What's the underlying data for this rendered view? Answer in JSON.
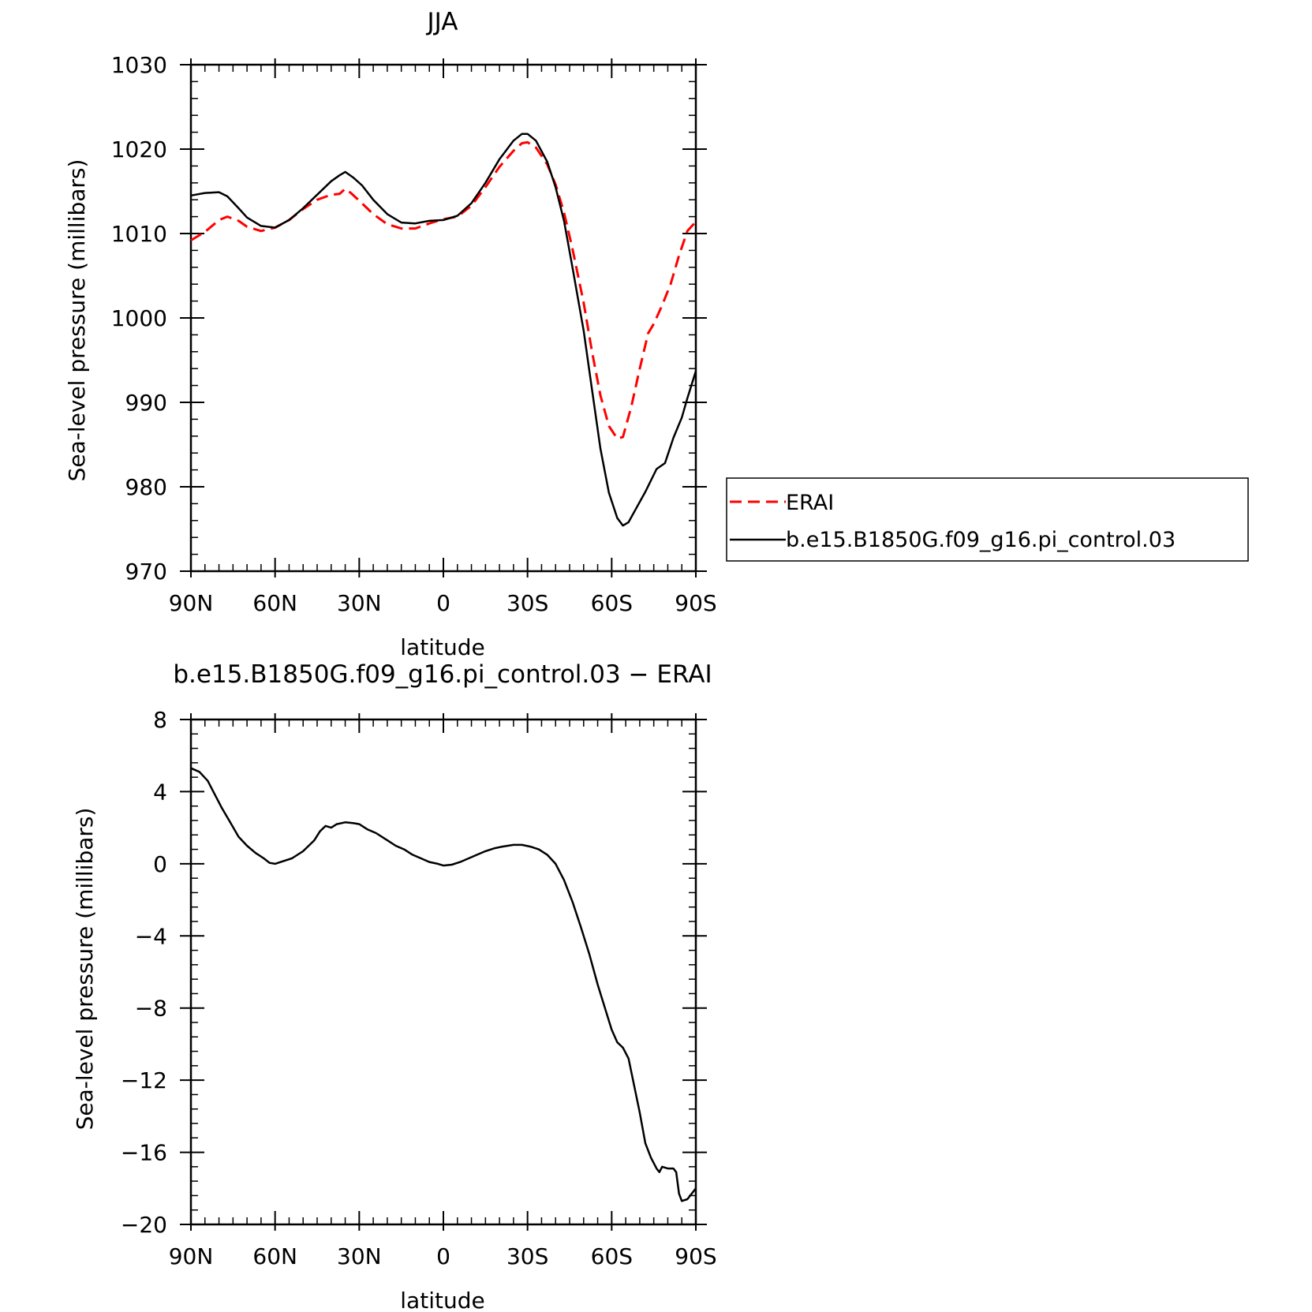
{
  "chart_data": [
    {
      "type": "line",
      "title": "JJA",
      "xlabel": "latitude",
      "ylabel": "Sea-level pressure (millibars)",
      "xlim": [
        90,
        -90
      ],
      "ylim": [
        970,
        1030
      ],
      "x_tick_values": [
        90,
        60,
        30,
        0,
        -30,
        -60,
        -90
      ],
      "x_tick_labels": [
        "90N",
        "60N",
        "30N",
        "0",
        "30S",
        "60S",
        "90S"
      ],
      "y_tick_values": [
        970,
        980,
        990,
        1000,
        1010,
        1020,
        1030
      ],
      "y_tick_labels": [
        "970",
        "980",
        "990",
        "1000",
        "1010",
        "1020",
        "1030"
      ],
      "legend": "right",
      "series": [
        {
          "name": "ERAI",
          "color": "#ff0000",
          "dash": "dashed",
          "points": [
            [
              90,
              1009.2
            ],
            [
              85,
              1010.2
            ],
            [
              80,
              1011.6
            ],
            [
              77,
              1012.0
            ],
            [
              73,
              1011.5
            ],
            [
              70,
              1010.8
            ],
            [
              65,
              1010.3
            ],
            [
              60,
              1010.7
            ],
            [
              55,
              1011.6
            ],
            [
              50,
              1012.9
            ],
            [
              45,
              1014.0
            ],
            [
              40,
              1014.6
            ],
            [
              37,
              1014.7
            ],
            [
              35,
              1015.3
            ],
            [
              33,
              1014.8
            ],
            [
              30,
              1013.9
            ],
            [
              25,
              1012.3
            ],
            [
              20,
              1011.1
            ],
            [
              15,
              1010.6
            ],
            [
              10,
              1010.6
            ],
            [
              5,
              1011.2
            ],
            [
              0,
              1011.7
            ],
            [
              -5,
              1012.0
            ],
            [
              -10,
              1013.3
            ],
            [
              -15,
              1015.5
            ],
            [
              -20,
              1017.9
            ],
            [
              -25,
              1019.8
            ],
            [
              -28,
              1020.7
            ],
            [
              -30,
              1020.8
            ],
            [
              -33,
              1020.2
            ],
            [
              -37,
              1018.2
            ],
            [
              -40,
              1015.8
            ],
            [
              -43,
              1012.5
            ],
            [
              -46,
              1008.2
            ],
            [
              -50,
              1001.8
            ],
            [
              -53,
              996.0
            ],
            [
              -56,
              990.8
            ],
            [
              -59,
              987.2
            ],
            [
              -62,
              985.7
            ],
            [
              -64,
              985.9
            ],
            [
              -67,
              989.5
            ],
            [
              -70,
              994.0
            ],
            [
              -73,
              998.2
            ],
            [
              -75,
              999.3
            ],
            [
              -78,
              1001.5
            ],
            [
              -81,
              1004.0
            ],
            [
              -84,
              1007.4
            ],
            [
              -87,
              1010.3
            ],
            [
              -90,
              1011.4
            ]
          ]
        },
        {
          "name": "b.e15.B1850G.f09_g16.pi_control.03",
          "color": "#000000",
          "dash": "solid",
          "points": [
            [
              90,
              1014.5
            ],
            [
              85,
              1014.8
            ],
            [
              80,
              1014.9
            ],
            [
              77,
              1014.4
            ],
            [
              73,
              1013.0
            ],
            [
              70,
              1011.9
            ],
            [
              65,
              1010.9
            ],
            [
              60,
              1010.7
            ],
            [
              55,
              1011.6
            ],
            [
              50,
              1013.0
            ],
            [
              45,
              1014.6
            ],
            [
              40,
              1016.2
            ],
            [
              37,
              1016.9
            ],
            [
              35,
              1017.3
            ],
            [
              32,
              1016.6
            ],
            [
              29,
              1015.7
            ],
            [
              25,
              1014.0
            ],
            [
              20,
              1012.3
            ],
            [
              15,
              1011.3
            ],
            [
              10,
              1011.2
            ],
            [
              5,
              1011.5
            ],
            [
              0,
              1011.6
            ],
            [
              -5,
              1012.1
            ],
            [
              -10,
              1013.6
            ],
            [
              -15,
              1016.0
            ],
            [
              -20,
              1018.8
            ],
            [
              -25,
              1021.0
            ],
            [
              -28,
              1021.8
            ],
            [
              -30,
              1021.8
            ],
            [
              -33,
              1021.0
            ],
            [
              -37,
              1018.5
            ],
            [
              -40,
              1015.5
            ],
            [
              -43,
              1011.5
            ],
            [
              -46,
              1006.0
            ],
            [
              -50,
              998.5
            ],
            [
              -53,
              991.5
            ],
            [
              -56,
              984.5
            ],
            [
              -59,
              979.3
            ],
            [
              -62,
              976.3
            ],
            [
              -64,
              975.4
            ],
            [
              -66,
              975.8
            ],
            [
              -69,
              977.6
            ],
            [
              -72,
              979.4
            ],
            [
              -76,
              982.1
            ],
            [
              -79,
              982.8
            ],
            [
              -82,
              985.8
            ],
            [
              -85,
              988.2
            ],
            [
              -87,
              990.5
            ],
            [
              -90,
              993.7
            ]
          ]
        }
      ]
    },
    {
      "type": "line",
      "title": "b.e15.B1850G.f09_g16.pi_control.03 − ERAI",
      "xlabel": "latitude",
      "ylabel": "Sea-level pressure (millibars)",
      "xlim": [
        90,
        -90
      ],
      "ylim": [
        -20,
        8
      ],
      "x_tick_values": [
        90,
        60,
        30,
        0,
        -30,
        -60,
        -90
      ],
      "x_tick_labels": [
        "90N",
        "60N",
        "30N",
        "0",
        "30S",
        "60S",
        "90S"
      ],
      "y_tick_values": [
        -20,
        -16,
        -12,
        -8,
        -4,
        0,
        4,
        8
      ],
      "y_tick_labels": [
        "−20",
        "−16",
        "−12",
        "−8",
        "−4",
        "0",
        "4",
        "8"
      ],
      "series": [
        {
          "color": "#000000",
          "dash": "solid",
          "points": [
            [
              90,
              5.3
            ],
            [
              87,
              5.1
            ],
            [
              84,
              4.6
            ],
            [
              82,
              4.0
            ],
            [
              79,
              3.1
            ],
            [
              76,
              2.3
            ],
            [
              73,
              1.5
            ],
            [
              70,
              1.0
            ],
            [
              67,
              0.6
            ],
            [
              64,
              0.3
            ],
            [
              62,
              0.05
            ],
            [
              60,
              0.0
            ],
            [
              57,
              0.15
            ],
            [
              54,
              0.3
            ],
            [
              50,
              0.7
            ],
            [
              46,
              1.3
            ],
            [
              44,
              1.8
            ],
            [
              42,
              2.1
            ],
            [
              40,
              2.0
            ],
            [
              38,
              2.2
            ],
            [
              35,
              2.3
            ],
            [
              32,
              2.25
            ],
            [
              30,
              2.2
            ],
            [
              27,
              1.9
            ],
            [
              24,
              1.7
            ],
            [
              20,
              1.3
            ],
            [
              17,
              1.0
            ],
            [
              14,
              0.8
            ],
            [
              11,
              0.5
            ],
            [
              8,
              0.3
            ],
            [
              5,
              0.1
            ],
            [
              2,
              0.0
            ],
            [
              0,
              -0.1
            ],
            [
              -3,
              -0.05
            ],
            [
              -6,
              0.1
            ],
            [
              -9,
              0.3
            ],
            [
              -12,
              0.5
            ],
            [
              -15,
              0.7
            ],
            [
              -18,
              0.85
            ],
            [
              -21,
              0.95
            ],
            [
              -25,
              1.05
            ],
            [
              -28,
              1.05
            ],
            [
              -31,
              0.95
            ],
            [
              -34,
              0.8
            ],
            [
              -37,
              0.5
            ],
            [
              -40,
              0.0
            ],
            [
              -43,
              -0.9
            ],
            [
              -46,
              -2.1
            ],
            [
              -49,
              -3.5
            ],
            [
              -52,
              -5.0
            ],
            [
              -55,
              -6.7
            ],
            [
              -58,
              -8.2
            ],
            [
              -60,
              -9.2
            ],
            [
              -62,
              -9.9
            ],
            [
              -64,
              -10.2
            ],
            [
              -66,
              -10.8
            ],
            [
              -68,
              -12.3
            ],
            [
              -70,
              -13.8
            ],
            [
              -72,
              -15.5
            ],
            [
              -74,
              -16.3
            ],
            [
              -76,
              -16.9
            ],
            [
              -77,
              -17.1
            ],
            [
              -78,
              -16.8
            ],
            [
              -80,
              -16.9
            ],
            [
              -82,
              -16.9
            ],
            [
              -83,
              -17.1
            ],
            [
              -84,
              -18.3
            ],
            [
              -85,
              -18.7
            ],
            [
              -87,
              -18.6
            ],
            [
              -89,
              -18.2
            ],
            [
              -90,
              -18.0
            ]
          ]
        }
      ]
    }
  ]
}
